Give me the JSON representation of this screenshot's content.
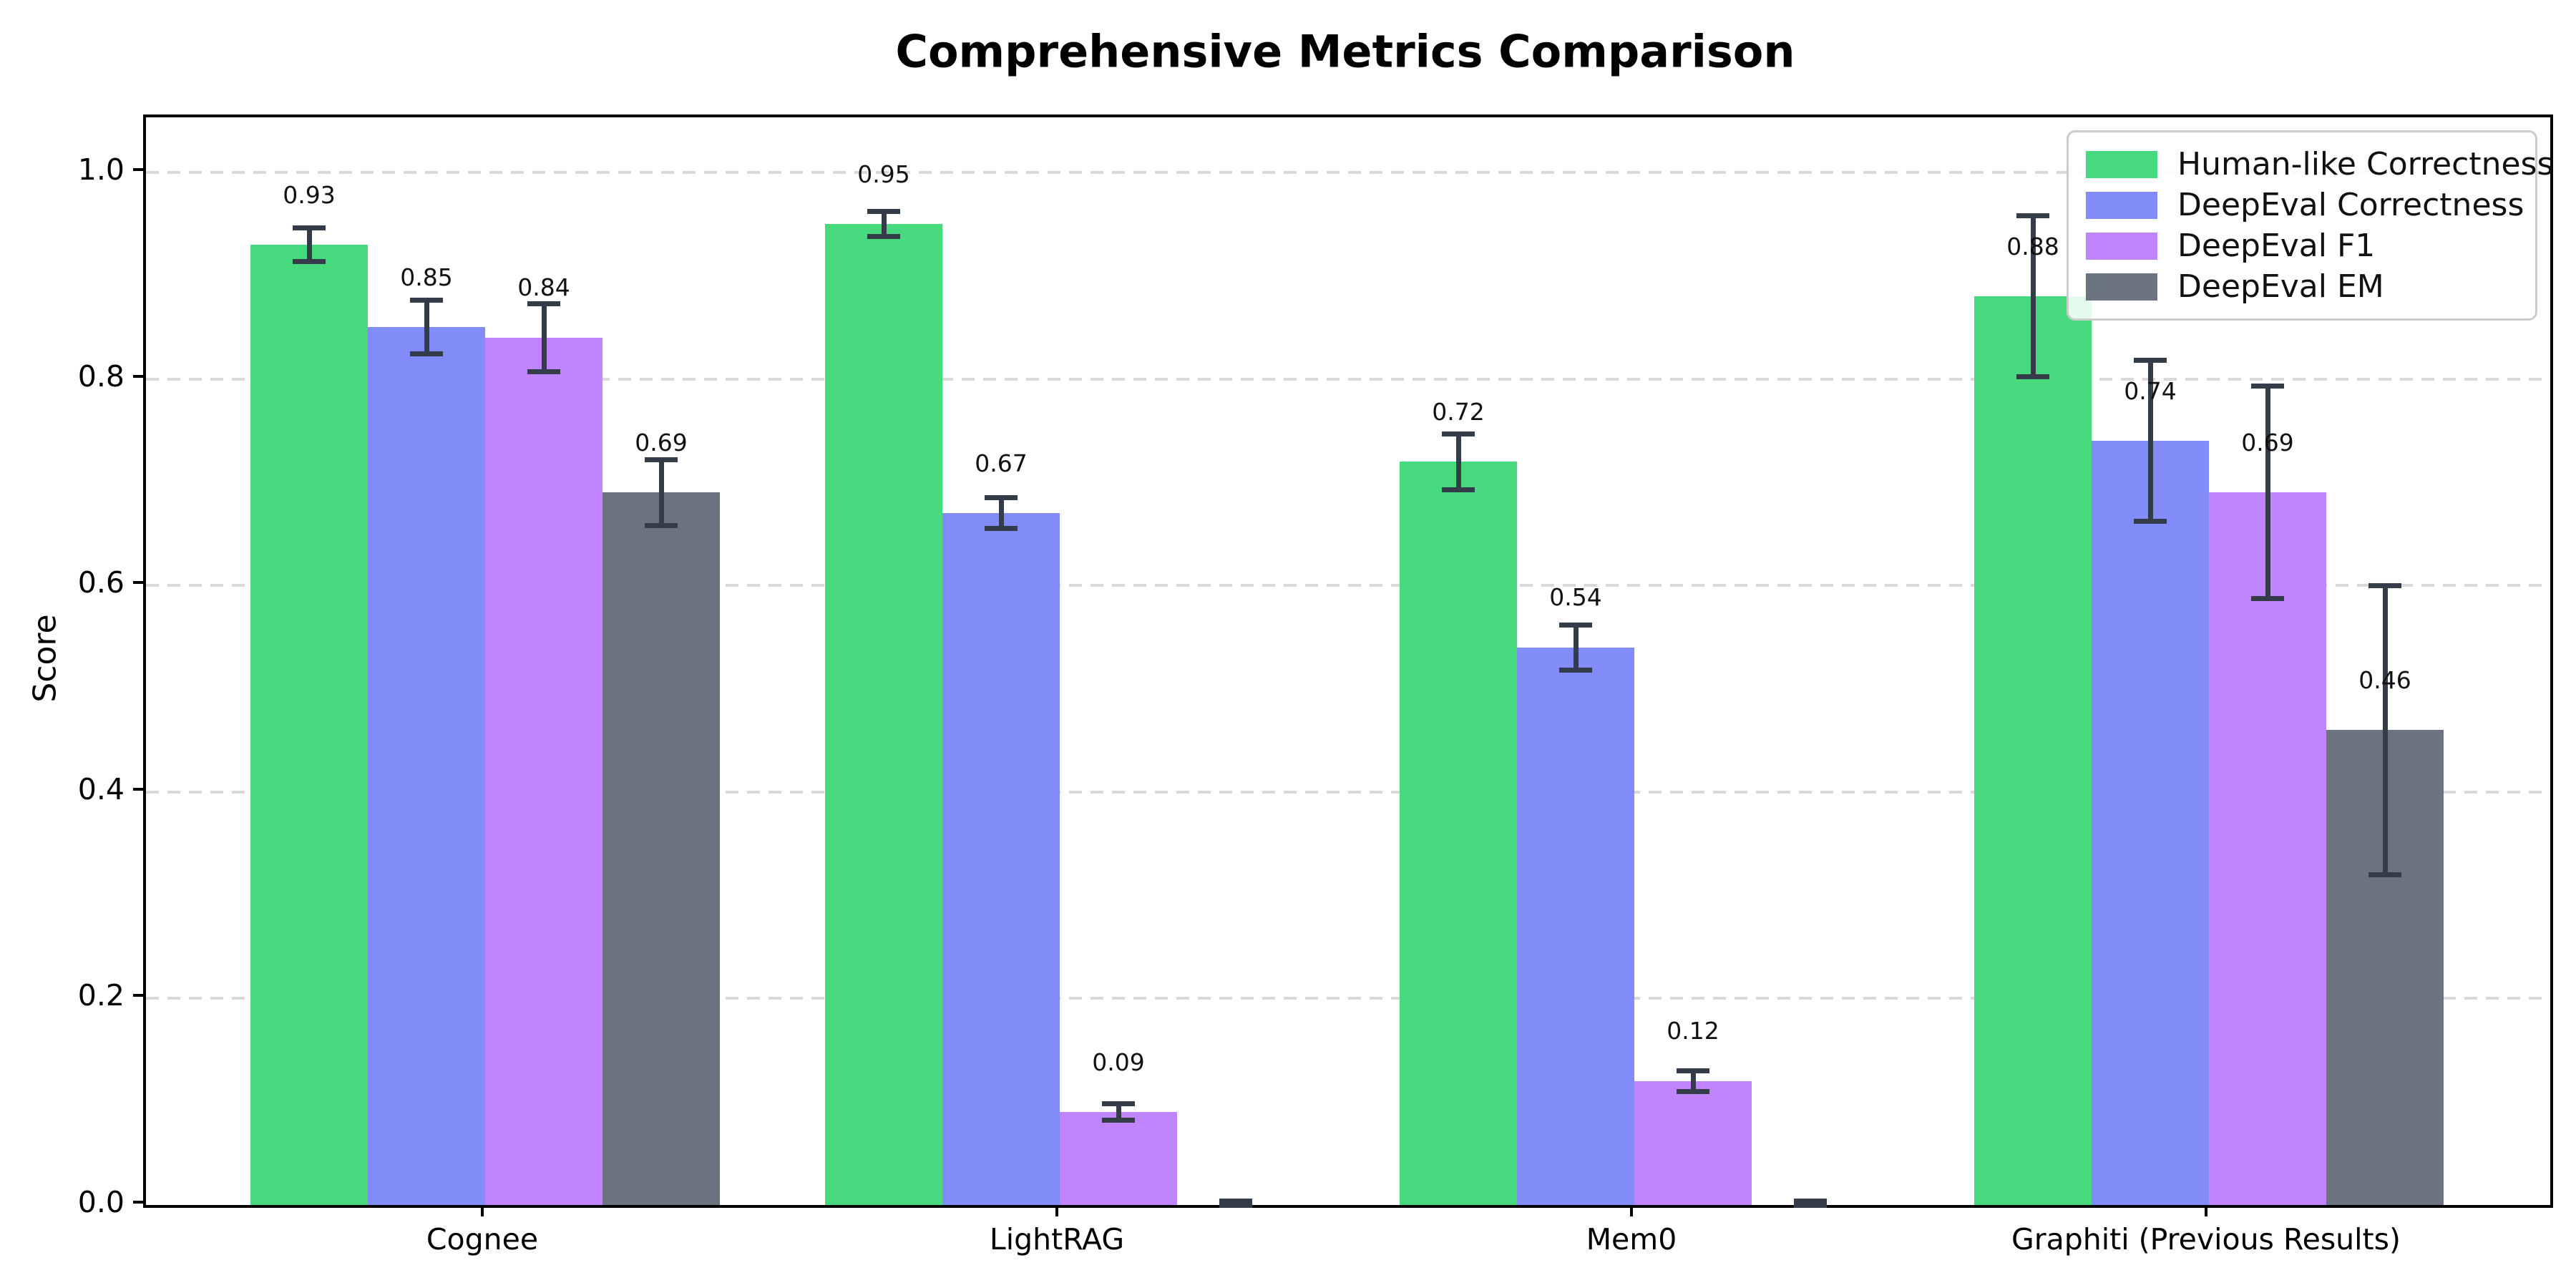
{
  "title": "Comprehensive Metrics Comparison",
  "chart_data": {
    "type": "bar",
    "title": "Comprehensive Metrics Comparison",
    "xlabel": "",
    "ylabel": "Score",
    "ylim": [
      0,
      1.05
    ],
    "yticks": [
      "0.0",
      "0.2",
      "0.4",
      "0.6",
      "0.8",
      "1.0"
    ],
    "ytick_values": [
      0.0,
      0.2,
      0.4,
      0.6,
      0.8,
      1.0
    ],
    "grid": "horizontal-dashed",
    "legend_position": "upper right",
    "error_bars": true,
    "categories": [
      "Cognee",
      "LightRAG",
      "Mem0",
      "Graphiti (Previous Results)"
    ],
    "series": [
      {
        "name": "Human-like Correctness",
        "color": "#47d97d",
        "values": [
          0.93,
          0.95,
          0.72,
          0.88
        ],
        "errors": [
          0.016,
          0.012,
          0.027,
          0.078
        ],
        "labels": [
          "0.93",
          "0.95",
          "0.72",
          "0.88"
        ]
      },
      {
        "name": "DeepEval Correctness",
        "color": "#818cf8",
        "values": [
          0.85,
          0.67,
          0.54,
          0.74
        ],
        "errors": [
          0.026,
          0.015,
          0.022,
          0.078
        ],
        "labels": [
          "0.85",
          "0.67",
          "0.54",
          "0.74"
        ]
      },
      {
        "name": "DeepEval F1",
        "color": "#c084fc",
        "values": [
          0.84,
          0.09,
          0.12,
          0.69
        ],
        "errors": [
          0.033,
          0.008,
          0.01,
          0.103
        ],
        "labels": [
          "0.84",
          "0.09",
          "0.12",
          "0.69"
        ]
      },
      {
        "name": "DeepEval EM",
        "color": "#6b7280",
        "values": [
          0.69,
          0.0,
          0.0,
          0.46
        ],
        "errors": [
          0.032,
          0.004,
          0.004,
          0.14
        ],
        "labels": [
          "0.69",
          "",
          "",
          "0.46"
        ]
      }
    ],
    "colors": {
      "error_bar": "#343b49",
      "gridline": "#d9d9d9",
      "axis": "#000000",
      "background": "#ffffff"
    }
  }
}
